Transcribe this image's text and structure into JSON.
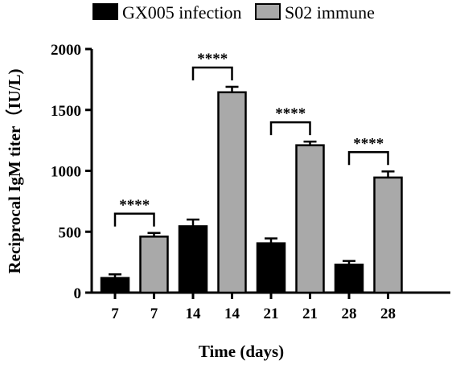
{
  "chart_data": {
    "type": "bar",
    "title": "",
    "xlabel": "Time (days)",
    "ylabel": "Reciprocal IgM titer（IU/L)",
    "ylim": [
      0,
      2000
    ],
    "yticks": [
      "0",
      "500",
      "1000",
      "1500",
      "2000"
    ],
    "categories": [
      "7",
      "7",
      "14",
      "14",
      "21",
      "21",
      "28",
      "28"
    ],
    "series": [
      {
        "name": "GX005 infection",
        "color": "#000000"
      },
      {
        "name": "S02 immune",
        "color": "#a9a9a9"
      }
    ],
    "bars": [
      {
        "category": "7",
        "series": 0,
        "value": 120,
        "error": 30
      },
      {
        "category": "7",
        "series": 1,
        "value": 460,
        "error": 30
      },
      {
        "category": "14",
        "series": 0,
        "value": 545,
        "error": 55
      },
      {
        "category": "14",
        "series": 1,
        "value": 1645,
        "error": 45
      },
      {
        "category": "21",
        "series": 0,
        "value": 405,
        "error": 40
      },
      {
        "category": "21",
        "series": 1,
        "value": 1210,
        "error": 30
      },
      {
        "category": "28",
        "series": 0,
        "value": 230,
        "error": 30
      },
      {
        "category": "28",
        "series": 1,
        "value": 945,
        "error": 50
      }
    ],
    "significance": [
      {
        "from": 0,
        "to": 1,
        "label": "****"
      },
      {
        "from": 2,
        "to": 3,
        "label": "****"
      },
      {
        "from": 4,
        "to": 5,
        "label": "****"
      },
      {
        "from": 6,
        "to": 7,
        "label": "****"
      }
    ],
    "legend_position": "top",
    "grid": false
  }
}
